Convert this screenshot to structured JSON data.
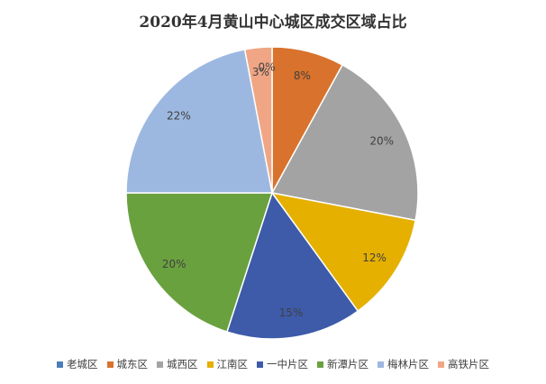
{
  "chart_data": {
    "type": "pie",
    "title": "2020年4月黄山中心城区成交区域占比",
    "categories": [
      "老城区",
      "城东区",
      "城西区",
      "江南区",
      "一中片区",
      "新潭片区",
      "梅林片区",
      "高铁片区"
    ],
    "values": [
      0,
      8,
      20,
      12,
      15,
      20,
      22,
      3
    ],
    "labels": [
      "0%",
      "8%",
      "20%",
      "12%",
      "15%",
      "20%",
      "22%",
      "3%"
    ],
    "colors": [
      "#4a7ebb",
      "#d9722c",
      "#a3a3a3",
      "#e5b000",
      "#3d5ba9",
      "#6aa13f",
      "#9db8e0",
      "#f0a685"
    ],
    "legend": "bottom"
  }
}
